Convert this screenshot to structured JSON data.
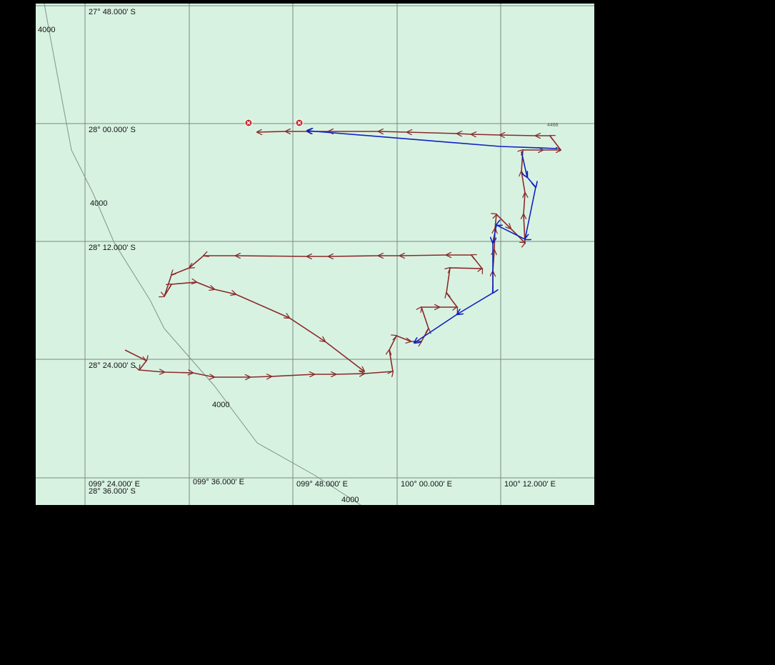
{
  "map": {
    "lat_labels": [
      "27° 48.000' S",
      "28° 00.000' S",
      "28° 12.000' S",
      "28° 24.000' S",
      "28° 36.000' S"
    ],
    "lon_labels": [
      "099° 24.000' E",
      "099° 36.000' E",
      "099° 48.000' E",
      "100° 00.000' E",
      "100° 12.000' E"
    ],
    "contour_labels": [
      "4000",
      "4000",
      "4000",
      "4000"
    ],
    "depth_label": "4466"
  }
}
